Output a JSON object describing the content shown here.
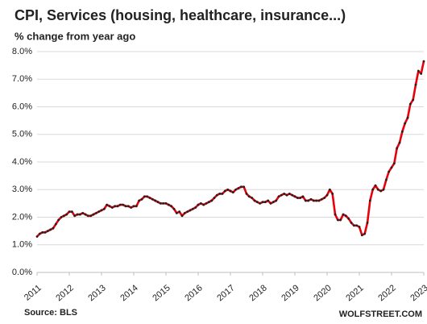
{
  "chart_data": {
    "type": "line",
    "title": "CPI, Services (housing, healthcare, insurance...)",
    "subtitle": "% change from year ago",
    "source": "Source: BLS",
    "credit": "WOLFSTREET.COM",
    "categories": [
      "2011",
      null,
      null,
      null,
      null,
      null,
      null,
      null,
      null,
      null,
      null,
      null,
      "2012",
      null,
      null,
      null,
      null,
      null,
      null,
      null,
      null,
      null,
      null,
      null,
      "2013",
      null,
      null,
      null,
      null,
      null,
      null,
      null,
      null,
      null,
      null,
      null,
      "2014",
      null,
      null,
      null,
      null,
      null,
      null,
      null,
      null,
      null,
      null,
      null,
      "2015",
      null,
      null,
      null,
      null,
      null,
      null,
      null,
      null,
      null,
      null,
      null,
      "2016",
      null,
      null,
      null,
      null,
      null,
      null,
      null,
      null,
      null,
      null,
      null,
      "2017",
      null,
      null,
      null,
      null,
      null,
      null,
      null,
      null,
      null,
      null,
      null,
      "2018",
      null,
      null,
      null,
      null,
      null,
      null,
      null,
      null,
      null,
      null,
      null,
      "2019",
      null,
      null,
      null,
      null,
      null,
      null,
      null,
      null,
      null,
      null,
      null,
      "2020",
      null,
      null,
      null,
      null,
      null,
      null,
      null,
      null,
      null,
      null,
      null,
      "2021",
      null,
      null,
      null,
      null,
      null,
      null,
      null,
      null,
      null,
      null,
      null,
      "2022",
      null,
      null,
      null,
      null,
      null,
      null,
      null,
      null,
      null,
      null,
      null,
      "2023"
    ],
    "series": [
      {
        "name": "CPI Services",
        "color": "#e8000b",
        "marker_color": "#222222",
        "values": [
          1.3,
          1.4,
          1.45,
          1.45,
          1.5,
          1.55,
          1.6,
          1.75,
          1.9,
          2.0,
          2.05,
          2.1,
          2.2,
          2.2,
          2.05,
          2.1,
          2.1,
          2.15,
          2.1,
          2.05,
          2.05,
          2.1,
          2.15,
          2.2,
          2.25,
          2.3,
          2.45,
          2.4,
          2.35,
          2.4,
          2.4,
          2.45,
          2.45,
          2.4,
          2.4,
          2.35,
          2.4,
          2.4,
          2.6,
          2.65,
          2.75,
          2.75,
          2.7,
          2.65,
          2.6,
          2.55,
          2.5,
          2.5,
          2.5,
          2.45,
          2.4,
          2.3,
          2.15,
          2.2,
          2.05,
          2.15,
          2.2,
          2.25,
          2.3,
          2.35,
          2.45,
          2.5,
          2.45,
          2.5,
          2.55,
          2.6,
          2.7,
          2.8,
          2.85,
          2.85,
          2.95,
          3.0,
          2.95,
          2.9,
          3.0,
          3.05,
          3.1,
          3.1,
          2.85,
          2.75,
          2.7,
          2.6,
          2.55,
          2.5,
          2.55,
          2.55,
          2.6,
          2.5,
          2.55,
          2.6,
          2.75,
          2.8,
          2.85,
          2.8,
          2.85,
          2.8,
          2.75,
          2.7,
          2.7,
          2.75,
          2.6,
          2.6,
          2.65,
          2.6,
          2.6,
          2.6,
          2.65,
          2.7,
          2.8,
          3.0,
          2.85,
          2.1,
          1.9,
          1.9,
          2.1,
          2.05,
          1.95,
          1.8,
          1.7,
          1.7,
          1.65,
          1.35,
          1.4,
          1.8,
          2.6,
          3.0,
          3.15,
          3.0,
          2.95,
          3.0,
          3.35,
          3.65,
          3.8,
          3.95,
          4.5,
          4.7,
          5.1,
          5.4,
          5.6,
          6.1,
          6.25,
          6.8,
          7.3,
          7.2,
          7.65
        ]
      }
    ],
    "ylim": [
      0,
      8
    ],
    "yticks": [
      {
        "value": 0,
        "label": "0.0%"
      },
      {
        "value": 1,
        "label": "1.0%"
      },
      {
        "value": 2,
        "label": "2.0%"
      },
      {
        "value": 3,
        "label": "3.0%"
      },
      {
        "value": 4,
        "label": "4.0%"
      },
      {
        "value": 5,
        "label": "5.0%"
      },
      {
        "value": 6,
        "label": "6.0%"
      },
      {
        "value": 7,
        "label": "7.0%"
      },
      {
        "value": 8,
        "label": "8.0%"
      }
    ],
    "grid": true
  }
}
